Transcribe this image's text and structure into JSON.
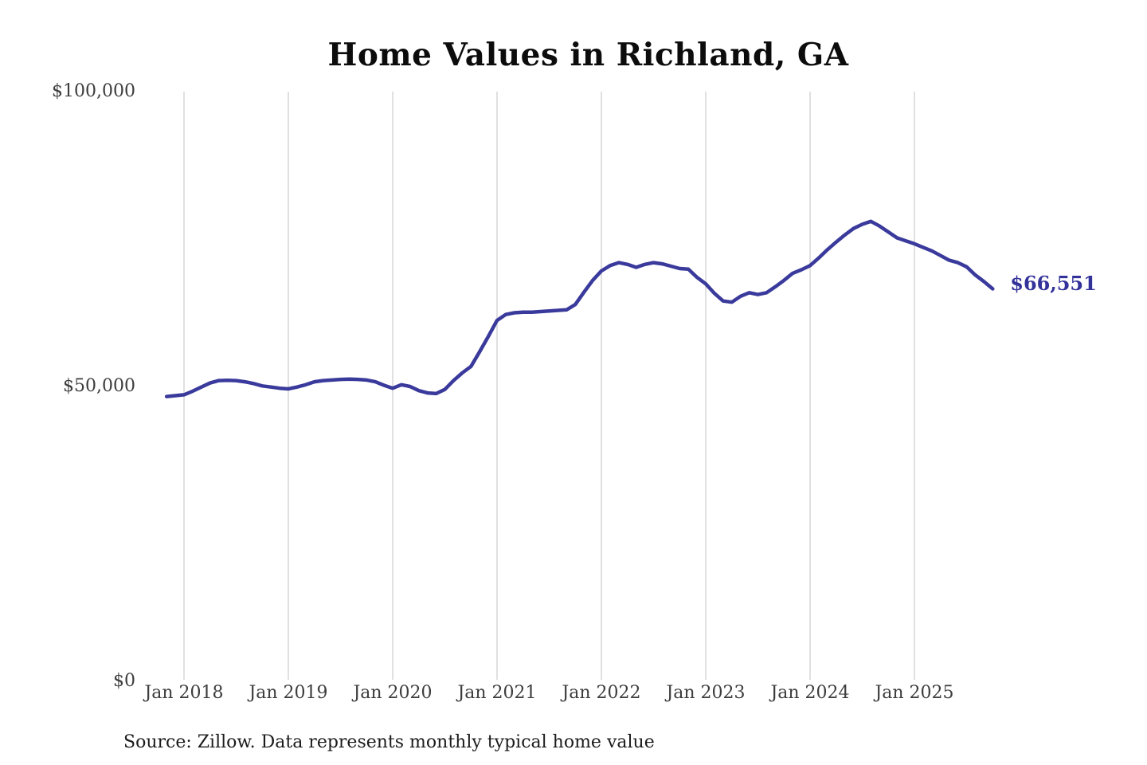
{
  "accent_color": "#3a3a9c",
  "gridline_color": "#cccccc",
  "header": {
    "title": "Home Values in Richland, GA"
  },
  "footer": {
    "source_note": "Source: Zillow. Data represents monthly typical home value"
  },
  "end_label": "$66,551",
  "chart_data": {
    "type": "line",
    "title": "Home Values in Richland, GA",
    "xlabel": "",
    "ylabel": "",
    "ylim": [
      0,
      100000
    ],
    "grid": "vertical-only",
    "legend": "none",
    "line_color": "#3a3a9c",
    "y_tick_labels": [
      "$100,000",
      "$50,000",
      "$0"
    ],
    "y_tick_values": [
      100000,
      50000,
      0
    ],
    "x_tick_labels": [
      "Jan 2018",
      "Jan 2019",
      "Jan 2020",
      "Jan 2021",
      "Jan 2022",
      "Jan 2023",
      "Jan 2024",
      "Jan 2025"
    ],
    "series_name": "Monthly typical home value",
    "x": [
      "2017-11",
      "2017-12",
      "2018-01",
      "2018-02",
      "2018-03",
      "2018-04",
      "2018-05",
      "2018-06",
      "2018-07",
      "2018-08",
      "2018-09",
      "2018-10",
      "2018-11",
      "2018-12",
      "2019-01",
      "2019-02",
      "2019-03",
      "2019-04",
      "2019-05",
      "2019-06",
      "2019-07",
      "2019-08",
      "2019-09",
      "2019-10",
      "2019-11",
      "2019-12",
      "2020-01",
      "2020-02",
      "2020-03",
      "2020-04",
      "2020-05",
      "2020-06",
      "2020-07",
      "2020-08",
      "2020-09",
      "2020-10",
      "2020-11",
      "2020-12",
      "2021-01",
      "2021-02",
      "2021-03",
      "2021-04",
      "2021-05",
      "2021-06",
      "2021-07",
      "2021-08",
      "2021-09",
      "2021-10",
      "2021-11",
      "2021-12",
      "2022-01",
      "2022-02",
      "2022-03",
      "2022-04",
      "2022-05",
      "2022-06",
      "2022-07",
      "2022-08",
      "2022-09",
      "2022-10",
      "2022-11",
      "2022-12",
      "2023-01",
      "2023-02",
      "2023-03",
      "2023-04",
      "2023-05",
      "2023-06",
      "2023-07",
      "2023-08",
      "2023-09",
      "2023-10",
      "2023-11",
      "2023-12",
      "2024-01",
      "2024-02",
      "2024-03",
      "2024-04",
      "2024-05",
      "2024-06",
      "2024-07",
      "2024-08",
      "2024-09",
      "2024-10",
      "2024-11",
      "2024-12",
      "2025-01",
      "2025-02",
      "2025-03",
      "2025-04",
      "2025-05",
      "2025-06",
      "2025-07",
      "2025-08",
      "2025-09",
      "2025-10"
    ],
    "values": [
      48300,
      48450,
      48600,
      49200,
      49900,
      50600,
      51000,
      51050,
      51000,
      50800,
      50500,
      50100,
      49900,
      49700,
      49600,
      49900,
      50300,
      50800,
      51000,
      51100,
      51200,
      51250,
      51200,
      51100,
      50800,
      50200,
      49700,
      50300,
      50000,
      49300,
      48900,
      48800,
      49500,
      51000,
      52300,
      53400,
      55900,
      58500,
      61200,
      62200,
      62500,
      62600,
      62600,
      62700,
      62800,
      62900,
      63000,
      63900,
      66000,
      68000,
      69600,
      70500,
      71000,
      70700,
      70200,
      70700,
      71000,
      70800,
      70400,
      70000,
      69900,
      68500,
      67400,
      65800,
      64500,
      64300,
      65300,
      65900,
      65600,
      65900,
      66900,
      68000,
      69200,
      69800,
      70500,
      71800,
      73200,
      74500,
      75700,
      76800,
      77500,
      78000,
      77200,
      76200,
      75200,
      74700,
      74200,
      73600,
      73000,
      72200,
      71400,
      71000,
      70300,
      68900,
      67800,
      66551
    ],
    "last_value": 66551,
    "last_value_label": "$66,551",
    "source": "Source: Zillow. Data represents monthly typical home value"
  }
}
